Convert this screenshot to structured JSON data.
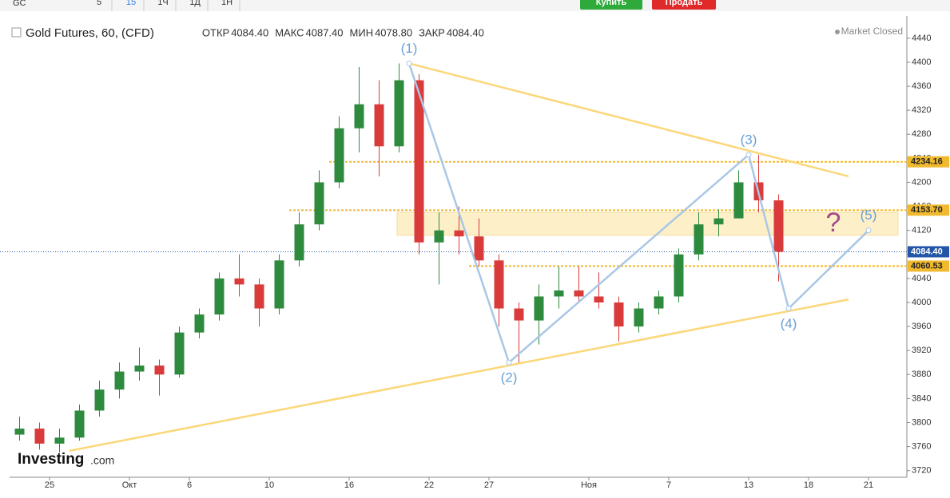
{
  "toolbar": {
    "symbol": "GC",
    "intervals": [
      "5",
      "15",
      "1Ч",
      "1Д",
      "1Н"
    ],
    "buy": "Купить",
    "sell": "Продать"
  },
  "header": {
    "title": "Gold Futures, 60, (CFD)",
    "ohlc": [
      {
        "label": "ОТКР",
        "value": "4084.40"
      },
      {
        "label": "МАКС",
        "value": "4087.40"
      },
      {
        "label": "МИН",
        "value": "4078.80"
      },
      {
        "label": "ЗАКР",
        "value": "4084.40"
      }
    ],
    "status": "Market Closed"
  },
  "logo": {
    "main": "Investing",
    "suffix": ".com"
  },
  "chart_data": {
    "type": "candlestick",
    "categories": [
      null,
      null,
      "25",
      null,
      null,
      null,
      "Окт",
      null,
      null,
      "6",
      null,
      null,
      null,
      "10",
      null,
      null,
      null,
      "16",
      null,
      null,
      null,
      "22",
      null,
      null,
      "27",
      null,
      null,
      null,
      null,
      "Ноя",
      null,
      null,
      null,
      "7",
      null,
      null,
      null,
      "13",
      null,
      null,
      "18",
      null,
      null,
      "21"
    ],
    "open": [
      3780,
      3790,
      3765,
      3775,
      3820,
      3855,
      3885,
      3895,
      3880,
      3950,
      3980,
      4040,
      4030,
      3990,
      4070,
      4130,
      4200,
      4290,
      4330,
      4260,
      4370,
      4100,
      4120,
      4110,
      4070,
      3990,
      3970,
      4010,
      4020,
      4010,
      4000,
      3960,
      3990,
      4010,
      4080,
      4130,
      4140,
      4200,
      4170,
      null,
      null,
      null,
      null,
      null
    ],
    "high": [
      3810,
      3800,
      3790,
      3830,
      3870,
      3900,
      3925,
      3905,
      3960,
      3990,
      4050,
      4080,
      4040,
      4080,
      4150,
      4220,
      4310,
      4392,
      4370,
      4398,
      4380,
      4150,
      4160,
      4140,
      4080,
      4000,
      4030,
      4060,
      4060,
      4050,
      4010,
      4000,
      4020,
      4090,
      4150,
      4155,
      4220,
      4246,
      4180,
      null,
      null,
      null,
      null,
      null
    ],
    "low": [
      3770,
      3755,
      3750,
      3770,
      3810,
      3840,
      3870,
      3845,
      3875,
      3940,
      3970,
      4010,
      3960,
      3980,
      4060,
      4120,
      4190,
      4250,
      4210,
      4250,
      4080,
      4030,
      4080,
      4060,
      3960,
      3900,
      3930,
      3990,
      4000,
      3990,
      3935,
      3950,
      3980,
      4000,
      4070,
      4110,
      4140,
      4150,
      4035,
      null,
      null,
      null,
      null,
      null
    ],
    "close": [
      3790,
      3765,
      3775,
      3820,
      3855,
      3885,
      3895,
      3880,
      3950,
      3980,
      4040,
      4030,
      3990,
      4070,
      4130,
      4200,
      4290,
      4330,
      4260,
      4370,
      4100,
      4120,
      4110,
      4070,
      3990,
      3970,
      4010,
      4020,
      4010,
      4000,
      3960,
      3990,
      4010,
      4080,
      4130,
      4140,
      4200,
      4170,
      4084.4,
      null,
      null,
      null,
      null,
      null
    ],
    "up_color": "#2e8b3e",
    "down_color": "#d93b3b",
    "ylim": [
      3709,
      4477
    ],
    "yticks": [
      3720,
      3760,
      3800,
      3840,
      3880,
      3920,
      3960,
      4000,
      4040,
      4080,
      4120,
      4160,
      4200,
      4240,
      4280,
      4320,
      4360,
      4400,
      4440
    ],
    "levels": [
      {
        "value": 4234.16,
        "label": "4234.16",
        "from": 16
      },
      {
        "value": 4153.7,
        "label": "4153.70",
        "from": 14
      },
      {
        "value": 4060.53,
        "label": "4060.53",
        "from": 23
      }
    ],
    "level_color": "#f0b92e",
    "price_line": {
      "value": 4084.4,
      "label": "4084.40",
      "color": "#2356a8"
    },
    "zone": {
      "low": 4112,
      "high": 4150,
      "from": 19,
      "color": "#fdf0c8"
    },
    "waves": {
      "color": "#a9c7e6",
      "points": [
        {
          "label": "(1)",
          "at": 20,
          "y": 4398
        },
        {
          "label": "(2)",
          "at": 25,
          "y": 3900
        },
        {
          "label": "(3)",
          "at": 37,
          "y": 4246
        },
        {
          "label": "(4)",
          "at": 39,
          "y": 3990
        },
        {
          "label": "(5)",
          "at": 43,
          "y": 4120
        }
      ]
    },
    "trendlines": {
      "color": "#fbd779",
      "lines": [
        {
          "from": 20,
          "to": 42,
          "y": [
            4398,
            4210
          ]
        },
        {
          "from": 3,
          "to": 42,
          "y": [
            3753,
            4005
          ]
        }
      ]
    },
    "annotation": {
      "text": "?",
      "at": 41,
      "y": 4130,
      "color": "#a5488a"
    }
  }
}
